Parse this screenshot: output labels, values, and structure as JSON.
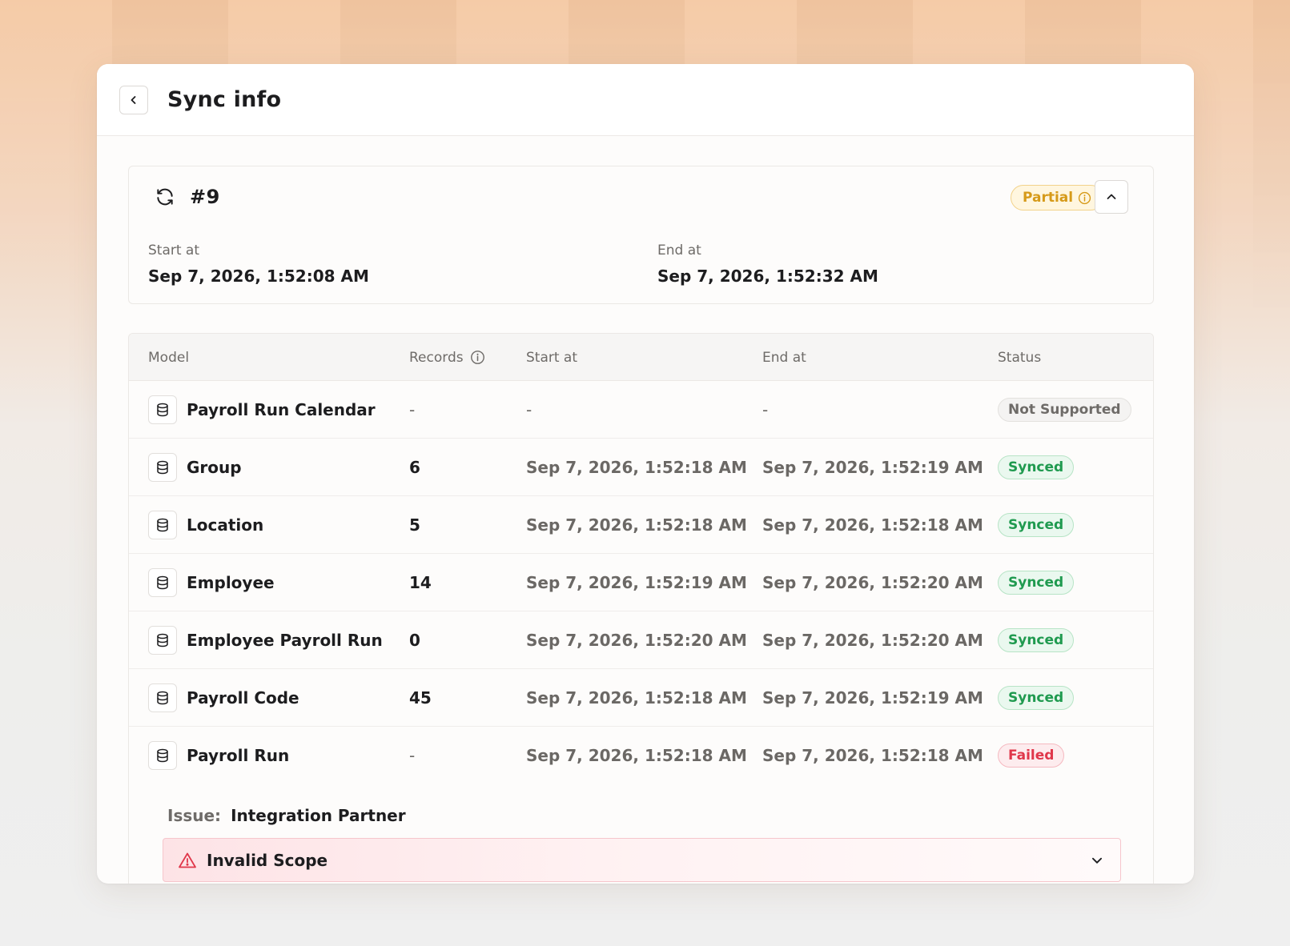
{
  "header": {
    "title": "Sync info"
  },
  "run": {
    "number": "#9",
    "status": "Partial",
    "start_label": "Start at",
    "start_value": "Sep 7, 2026, 1:52:08 AM",
    "end_label": "End at",
    "end_value": "Sep 7, 2026, 1:52:32 AM"
  },
  "table": {
    "columns": {
      "model": "Model",
      "records": "Records",
      "start": "Start at",
      "end": "End at",
      "status": "Status"
    },
    "rows": [
      {
        "model": "Payroll Run Calendar",
        "records": "-",
        "start": "-",
        "end": "-",
        "status": "Not Supported"
      },
      {
        "model": "Group",
        "records": "6",
        "start": "Sep 7, 2026, 1:52:18 AM",
        "end": "Sep 7, 2026, 1:52:19 AM",
        "status": "Synced"
      },
      {
        "model": "Location",
        "records": "5",
        "start": "Sep 7, 2026, 1:52:18 AM",
        "end": "Sep 7, 2026, 1:52:18 AM",
        "status": "Synced"
      },
      {
        "model": "Employee",
        "records": "14",
        "start": "Sep 7, 2026, 1:52:19 AM",
        "end": "Sep 7, 2026, 1:52:20 AM",
        "status": "Synced"
      },
      {
        "model": "Employee Payroll Run",
        "records": "0",
        "start": "Sep 7, 2026, 1:52:20 AM",
        "end": "Sep 7, 2026, 1:52:20 AM",
        "status": "Synced"
      },
      {
        "model": "Payroll Code",
        "records": "45",
        "start": "Sep 7, 2026, 1:52:18 AM",
        "end": "Sep 7, 2026, 1:52:19 AM",
        "status": "Synced"
      },
      {
        "model": "Payroll Run",
        "records": "-",
        "start": "Sep 7, 2026, 1:52:18 AM",
        "end": "Sep 7, 2026, 1:52:18 AM",
        "status": "Failed"
      }
    ]
  },
  "issue": {
    "label": "Issue:",
    "value": "Integration Partner",
    "error": "Invalid Scope"
  },
  "colors": {
    "synced": "#1f9a4f",
    "failed": "#e0374a",
    "partial": "#d69a19",
    "not_supported": "#6e6b68"
  },
  "icons": {
    "back": "chevron-left-icon",
    "sync": "refresh-icon",
    "info": "info-icon",
    "collapse": "chevron-up-icon",
    "model": "database-icon",
    "warning": "warning-triangle-icon",
    "expand": "chevron-down-icon"
  }
}
